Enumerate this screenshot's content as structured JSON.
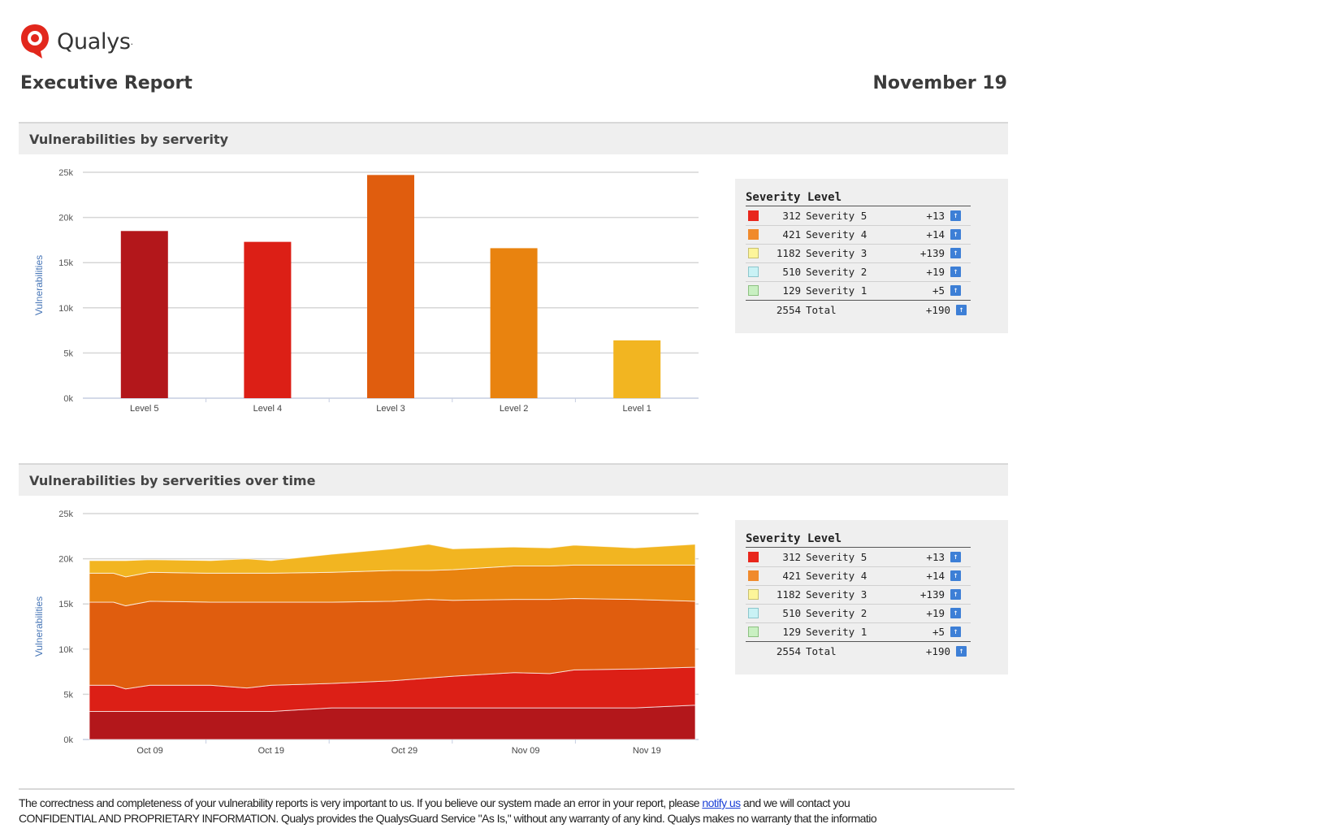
{
  "header": {
    "brand": "Qualys",
    "brand_suffix": ".",
    "title": "Executive Report",
    "date": "November 19"
  },
  "sections": [
    {
      "title": "Vulnerabilities by serverity"
    },
    {
      "title": "Vulnerabilities by serverities over time"
    }
  ],
  "legend": {
    "title": "Severity Level",
    "rows": [
      {
        "count": "312",
        "label": "Severity 5",
        "delta": "+13",
        "color": "#e8261c"
      },
      {
        "count": "421",
        "label": "Severity 4",
        "delta": "+14",
        "color": "#f08a2c"
      },
      {
        "count": "1182",
        "label": "Severity 3",
        "delta": "+139",
        "color": "#fdf59a"
      },
      {
        "count": "510",
        "label": "Severity 2",
        "delta": "+19",
        "color": "#c9f2f5"
      },
      {
        "count": "129",
        "label": "Severity 1",
        "delta": "+5",
        "color": "#c9f0c2"
      }
    ],
    "total": {
      "count": "2554",
      "label": "Total",
      "delta": "+190"
    },
    "arrow_icon": "up-arrow-icon"
  },
  "chart_data": [
    {
      "type": "bar",
      "title": "Vulnerabilities by serverity",
      "ylabel": "Vulnerabilities",
      "xlabel": "",
      "ylim": [
        0,
        25000
      ],
      "yticks": [
        0,
        5000,
        10000,
        15000,
        20000,
        25000
      ],
      "ytick_labels": [
        "0k",
        "5k",
        "10k",
        "15k",
        "20k",
        "25k"
      ],
      "categories": [
        "Level 5",
        "Level 4",
        "Level 3",
        "Level 2",
        "Level 1"
      ],
      "values": [
        18500,
        17300,
        24700,
        16600,
        6400
      ],
      "colors": [
        "#b3171b",
        "#dc1f16",
        "#e05d0e",
        "#e9830f",
        "#f2b521"
      ],
      "grid": true
    },
    {
      "type": "area",
      "title": "Vulnerabilities by serverities over time",
      "ylabel": "Vulnerabilities",
      "xlabel": "",
      "stacked": true,
      "ylim": [
        0,
        25000
      ],
      "yticks": [
        0,
        5000,
        10000,
        15000,
        20000,
        25000
      ],
      "ytick_labels": [
        "0k",
        "5k",
        "10k",
        "15k",
        "20k",
        "25k"
      ],
      "xlim": [
        0,
        50
      ],
      "xticks": [
        5,
        15,
        26,
        36,
        46
      ],
      "xtick_labels": [
        "Oct 09",
        "Oct 19",
        "Oct 29",
        "Nov  09",
        "Nov 19"
      ],
      "x": [
        0,
        2,
        3,
        5,
        10,
        13,
        15,
        20,
        25,
        28,
        30,
        35,
        38,
        40,
        45,
        50
      ],
      "series": [
        {
          "name": "Severity 5",
          "color": "#b3171b",
          "values": [
            3100,
            3100,
            3100,
            3100,
            3100,
            3100,
            3100,
            3500,
            3500,
            3500,
            3500,
            3500,
            3500,
            3500,
            3500,
            3800
          ]
        },
        {
          "name": "Severity 4",
          "color": "#dc1f16",
          "values": [
            2900,
            2900,
            2500,
            2900,
            2900,
            2600,
            2900,
            2700,
            3000,
            3300,
            3500,
            3900,
            3800,
            4200,
            4300,
            4200
          ]
        },
        {
          "name": "Severity 3",
          "color": "#e05d0e",
          "values": [
            9200,
            9200,
            9200,
            9300,
            9200,
            9500,
            9200,
            9000,
            8800,
            8700,
            8400,
            8100,
            8200,
            7900,
            7700,
            7300
          ]
        },
        {
          "name": "Severity 2",
          "color": "#e9830f",
          "values": [
            3200,
            3200,
            3200,
            3200,
            3200,
            3200,
            3200,
            3300,
            3400,
            3200,
            3400,
            3700,
            3700,
            3700,
            3800,
            4000
          ]
        },
        {
          "name": "Severity 1",
          "color": "#f2b521",
          "values": [
            1400,
            1400,
            1800,
            1400,
            1400,
            1600,
            1400,
            2000,
            2400,
            2900,
            2300,
            2100,
            2000,
            2200,
            1900,
            2300
          ]
        }
      ],
      "grid": true
    }
  ],
  "footer": {
    "line1_pre": "The correctness and completeness of your vulnerability reports is very important to us. If you believe our system made an error in your report, please ",
    "line1_link": "notify us",
    "line1_post": " and we will contact you",
    "line2": "CONFIDENTIAL AND PROPRIETARY INFORMATION. Qualys provides the QualysGuard Service \"As Is,\" without any warranty of any kind. Qualys makes no warranty that the informatio"
  }
}
